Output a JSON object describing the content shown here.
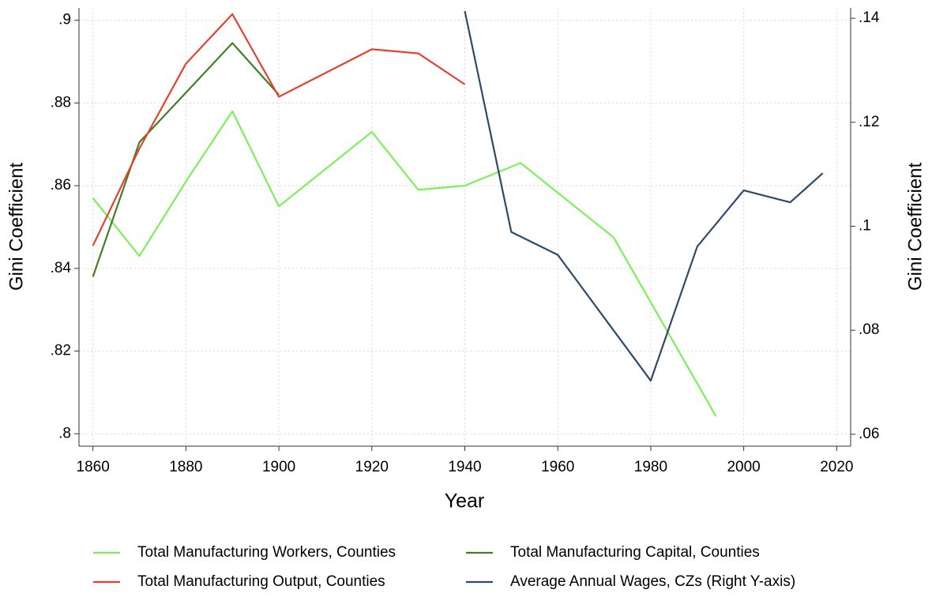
{
  "chart_data": {
    "type": "line",
    "x_label": "Year",
    "y_label": "Gini Coefficient",
    "y2_label": "Gini Coefficient",
    "xlim": [
      1857,
      2023
    ],
    "xticks": [
      1860,
      1880,
      1900,
      1920,
      1940,
      1960,
      1980,
      2000,
      2020
    ],
    "ylim": [
      0.797,
      0.903
    ],
    "yticks": [
      {
        "value": 0.8,
        "label": ".8"
      },
      {
        "value": 0.82,
        "label": ".82"
      },
      {
        "value": 0.84,
        "label": ".84"
      },
      {
        "value": 0.86,
        "label": ".86"
      },
      {
        "value": 0.88,
        "label": ".88"
      },
      {
        "value": 0.9,
        "label": ".9"
      }
    ],
    "y2lim": [
      0.0577,
      0.142
    ],
    "y2ticks": [
      {
        "value": 0.06,
        "label": ".06"
      },
      {
        "value": 0.08,
        "label": ".08"
      },
      {
        "value": 0.1,
        "label": ".1"
      },
      {
        "value": 0.12,
        "label": ".12"
      },
      {
        "value": 0.14,
        "label": ".14"
      }
    ],
    "grid": true,
    "series": [
      {
        "name": "Total Manufacturing Workers, Counties",
        "color": "#7cf05a",
        "x": [
          1860,
          1870,
          1880,
          1890,
          1900,
          1920,
          1930,
          1940,
          1952,
          1972,
          1994
        ],
        "values": [
          0.857,
          0.843,
          0.861,
          0.878,
          0.855,
          0.873,
          0.859,
          0.86,
          0.8655,
          0.8475,
          0.8043
        ]
      },
      {
        "name": "Total Manufacturing Capital, Counties",
        "color": "#3f7f27",
        "x": [
          1860,
          1870,
          1880,
          1890,
          1900
        ],
        "values": [
          0.838,
          0.8705,
          0.8825,
          0.8945,
          0.882
        ]
      },
      {
        "name": "Total Manufacturing Output, Counties",
        "color": "#e5412d",
        "x": [
          1860,
          1870,
          1880,
          1890,
          1900,
          1920,
          1930,
          1940
        ],
        "values": [
          0.8455,
          0.869,
          0.8895,
          0.9015,
          0.8815,
          0.893,
          0.892,
          0.8845
        ]
      },
      {
        "name": "Average Annual Wages, CZs (Right Y-axis)",
        "color": "#2c4a6a",
        "axis": "y2",
        "x": [
          1940,
          1950,
          1960,
          1980,
          1990,
          2000,
          2010,
          2017
        ],
        "values": [
          0.1414,
          0.0989,
          0.0945,
          0.0703,
          0.0961,
          0.1069,
          0.1046,
          0.1102
        ]
      }
    ]
  }
}
